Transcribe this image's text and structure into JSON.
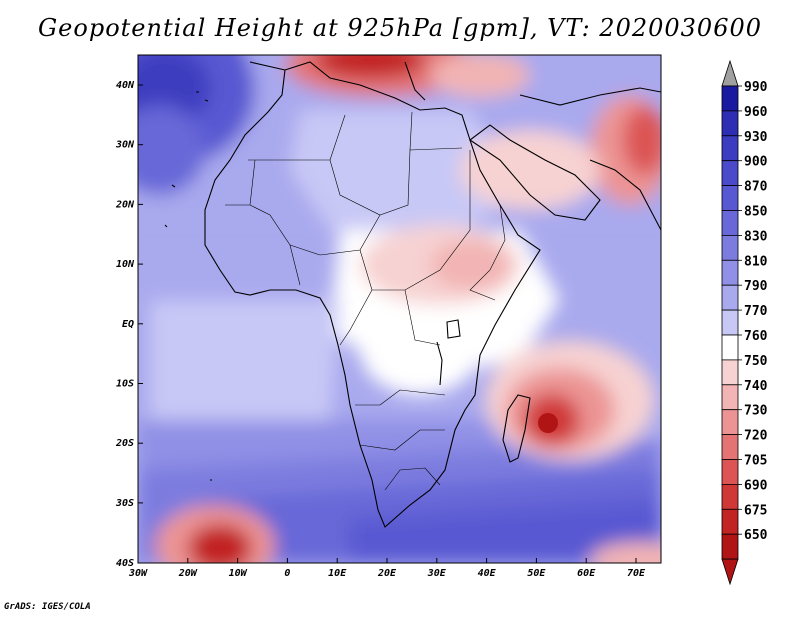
{
  "title": "Geopotential Height at 925hPa [gpm], VT: 2020030600",
  "credit": "GrADS: IGES/COLA",
  "lat_labels": [
    "40N",
    "30N",
    "20N",
    "10N",
    "EQ",
    "10S",
    "20S",
    "30S",
    "40S"
  ],
  "lon_labels": [
    "30W",
    "20W",
    "10W",
    "0",
    "10E",
    "20E",
    "30E",
    "40E",
    "50E",
    "60E",
    "70E"
  ],
  "colorbar": {
    "levels": [
      "990",
      "960",
      "930",
      "900",
      "870",
      "850",
      "830",
      "810",
      "790",
      "770",
      "760",
      "750",
      "740",
      "730",
      "720",
      "705",
      "690",
      "675",
      "650"
    ],
    "colors": [
      "#1a1aa0",
      "#2e2eb4",
      "#3c3cc0",
      "#4a4acb",
      "#5858d2",
      "#6868d8",
      "#7c7cdf",
      "#9090e6",
      "#a9a9ee",
      "#c8c8f6",
      "#ffffff",
      "#f7d2d2",
      "#f2b4b4",
      "#ec9494",
      "#e47474",
      "#dc5454",
      "#d03838",
      "#c22424",
      "#b01414"
    ]
  },
  "colors": {
    "arrow_top": "#a0a0a0",
    "arrow_bottom": "#b01414",
    "coast": "#000000"
  }
}
